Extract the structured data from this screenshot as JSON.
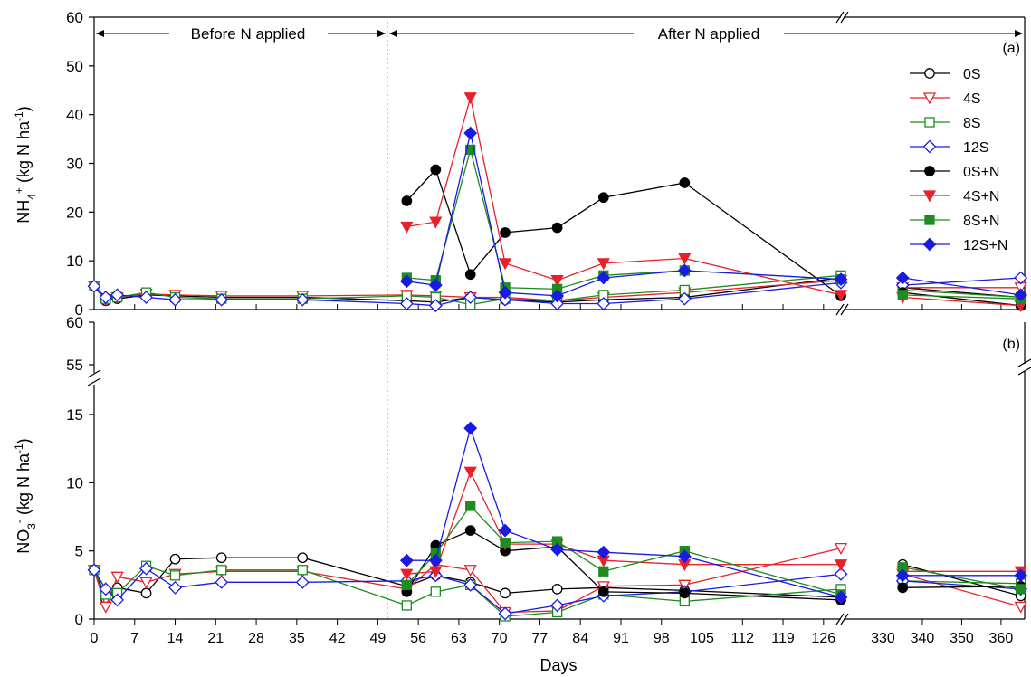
{
  "chart_data": [
    {
      "panel_label": "(a)",
      "type": "line",
      "ylabel": "NH4+ (kg N ha-1)",
      "ylabel_main": "NH",
      "ylabel_sub": "4",
      "ylabel_sup": "+",
      "ylabel_rest": " (kg N ha",
      "ylabel_sup2": "-1",
      "ylabel_close": ")",
      "ylim": [
        0,
        60
      ],
      "yticks": [
        0,
        10,
        20,
        30,
        40,
        50,
        60
      ],
      "xlabel": "",
      "x_axis_break": [
        129,
        320
      ],
      "before_label": "Before N applied",
      "after_label": "After N applied",
      "legend_position": "top-right",
      "series": [
        {
          "name": "0S",
          "color": "#000000",
          "marker": "circle",
          "filled": false,
          "points": [
            [
              0,
              4.8
            ],
            [
              2,
              1.8
            ],
            [
              4,
              2.2
            ],
            [
              9,
              3.0
            ],
            [
              14,
              2.8
            ],
            [
              22,
              2.5
            ],
            [
              36,
              2.5
            ],
            [
              54,
              1.8
            ],
            [
              59,
              1.5
            ],
            [
              65,
              2.5
            ],
            [
              71,
              2.0
            ],
            [
              80,
              1.5
            ],
            [
              88,
              2.0
            ],
            [
              102,
              2.5
            ],
            [
              129,
              6.5
            ],
            [
              335,
              4.5
            ],
            [
              365,
              2.5
            ]
          ]
        },
        {
          "name": "4S",
          "color": "#e8202a",
          "marker": "triangle-down",
          "filled": false,
          "points": [
            [
              0,
              4.8
            ],
            [
              2,
              2.0
            ],
            [
              4,
              2.5
            ],
            [
              9,
              3.2
            ],
            [
              14,
              3.0
            ],
            [
              22,
              2.8
            ],
            [
              36,
              2.8
            ],
            [
              54,
              3.0
            ],
            [
              59,
              2.8
            ],
            [
              65,
              2.5
            ],
            [
              71,
              2.5
            ],
            [
              80,
              1.8
            ],
            [
              88,
              2.5
            ],
            [
              102,
              3.5
            ],
            [
              129,
              6.0
            ],
            [
              335,
              4.5
            ],
            [
              365,
              4.5
            ]
          ]
        },
        {
          "name": "8S",
          "color": "#1e8c1e",
          "marker": "square",
          "filled": false,
          "points": [
            [
              0,
              4.8
            ],
            [
              2,
              2.2
            ],
            [
              4,
              2.5
            ],
            [
              9,
              3.5
            ],
            [
              14,
              2.5
            ],
            [
              22,
              2.2
            ],
            [
              36,
              2.2
            ],
            [
              54,
              2.8
            ],
            [
              59,
              2.5
            ],
            [
              65,
              1.0
            ],
            [
              71,
              2.2
            ],
            [
              80,
              1.8
            ],
            [
              88,
              3.0
            ],
            [
              102,
              4.0
            ],
            [
              129,
              7.0
            ],
            [
              335,
              4.0
            ],
            [
              365,
              2.5
            ]
          ]
        },
        {
          "name": "12S",
          "color": "#1a1ae6",
          "marker": "diamond",
          "filled": false,
          "points": [
            [
              0,
              4.8
            ],
            [
              2,
              2.5
            ],
            [
              4,
              3.0
            ],
            [
              9,
              2.5
            ],
            [
              14,
              2.0
            ],
            [
              22,
              2.0
            ],
            [
              36,
              2.0
            ],
            [
              54,
              1.2
            ],
            [
              59,
              0.8
            ],
            [
              65,
              2.5
            ],
            [
              71,
              2.0
            ],
            [
              80,
              1.2
            ],
            [
              88,
              1.2
            ],
            [
              102,
              2.2
            ],
            [
              129,
              5.5
            ],
            [
              335,
              5.0
            ],
            [
              365,
              6.5
            ]
          ]
        },
        {
          "name": "0S+N",
          "color": "#000000",
          "marker": "circle",
          "filled": true,
          "points": [
            [
              54,
              22.3
            ],
            [
              59,
              28.7
            ],
            [
              65,
              7.2
            ],
            [
              71,
              15.8
            ],
            [
              80,
              16.8
            ],
            [
              88,
              23.0
            ],
            [
              102,
              26.0
            ],
            [
              129,
              2.8
            ],
            [
              335,
              3.5
            ],
            [
              365,
              0.8
            ]
          ]
        },
        {
          "name": "4S+N",
          "color": "#e8202a",
          "marker": "triangle-down",
          "filled": true,
          "points": [
            [
              54,
              17.0
            ],
            [
              59,
              18.0
            ],
            [
              65,
              43.5
            ],
            [
              71,
              9.5
            ],
            [
              80,
              6.0
            ],
            [
              88,
              9.5
            ],
            [
              102,
              10.5
            ],
            [
              129,
              3.0
            ],
            [
              335,
              2.5
            ],
            [
              365,
              0.8
            ]
          ]
        },
        {
          "name": "8S+N",
          "color": "#1e8c1e",
          "marker": "square",
          "filled": true,
          "points": [
            [
              54,
              6.5
            ],
            [
              59,
              6.0
            ],
            [
              65,
              32.8
            ],
            [
              71,
              4.5
            ],
            [
              80,
              4.2
            ],
            [
              88,
              7.0
            ],
            [
              102,
              8.0
            ],
            [
              129,
              6.2
            ],
            [
              335,
              3.0
            ],
            [
              365,
              2.2
            ]
          ]
        },
        {
          "name": "12S+N",
          "color": "#1a1ae6",
          "marker": "diamond",
          "filled": true,
          "points": [
            [
              54,
              5.8
            ],
            [
              59,
              5.0
            ],
            [
              65,
              36.2
            ],
            [
              71,
              3.5
            ],
            [
              80,
              2.8
            ],
            [
              88,
              6.5
            ],
            [
              102,
              8.0
            ],
            [
              129,
              6.2
            ],
            [
              335,
              6.5
            ],
            [
              365,
              3.0
            ]
          ]
        }
      ]
    },
    {
      "panel_label": "(b)",
      "type": "line",
      "ylabel": "NO3- (kg N ha-1)",
      "ylabel_main": "NO",
      "ylabel_sub": "3",
      "ylabel_sup": "-",
      "ylabel_rest": " (kg N ha",
      "ylabel_sup2": "-1",
      "ylabel_close": ")",
      "ylim": [
        0,
        60
      ],
      "y_axis_break": [
        17,
        52
      ],
      "yticks": [
        0,
        5,
        10,
        15,
        55,
        60
      ],
      "xlabel": "Days",
      "x_axis_break": [
        129,
        320
      ],
      "xticks_left": [
        0,
        7,
        14,
        21,
        28,
        35,
        42,
        49,
        56,
        63,
        70,
        77,
        84,
        91,
        98,
        105,
        112,
        119,
        126
      ],
      "xticks_right": [
        330,
        340,
        350,
        360
      ],
      "series": [
        {
          "name": "0S",
          "color": "#000000",
          "marker": "circle",
          "filled": false,
          "points": [
            [
              0,
              3.6
            ],
            [
              2,
              1.5
            ],
            [
              4,
              2.3
            ],
            [
              9,
              1.9
            ],
            [
              14,
              4.4
            ],
            [
              22,
              4.5
            ],
            [
              36,
              4.5
            ],
            [
              54,
              2.4
            ],
            [
              59,
              3.2
            ],
            [
              65,
              2.7
            ],
            [
              71,
              1.9
            ],
            [
              80,
              2.2
            ],
            [
              88,
              2.3
            ],
            [
              102,
              2.1
            ],
            [
              129,
              1.6
            ],
            [
              335,
              4.0
            ],
            [
              365,
              1.7
            ]
          ]
        },
        {
          "name": "4S",
          "color": "#e8202a",
          "marker": "triangle-down",
          "filled": false,
          "points": [
            [
              0,
              3.6
            ],
            [
              2,
              0.9
            ],
            [
              4,
              3.1
            ],
            [
              9,
              2.7
            ],
            [
              14,
              3.3
            ],
            [
              22,
              3.5
            ],
            [
              36,
              3.5
            ],
            [
              54,
              2.2
            ],
            [
              59,
              4.0
            ],
            [
              65,
              3.6
            ],
            [
              71,
              0.5
            ],
            [
              80,
              0.6
            ],
            [
              88,
              2.4
            ],
            [
              102,
              2.5
            ],
            [
              129,
              5.2
            ],
            [
              335,
              3.3
            ],
            [
              365,
              0.9
            ]
          ]
        },
        {
          "name": "8S",
          "color": "#1e8c1e",
          "marker": "square",
          "filled": false,
          "points": [
            [
              0,
              3.6
            ],
            [
              2,
              1.8
            ],
            [
              4,
              1.9
            ],
            [
              9,
              3.9
            ],
            [
              14,
              3.2
            ],
            [
              22,
              3.6
            ],
            [
              36,
              3.6
            ],
            [
              54,
              1.0
            ],
            [
              59,
              2.0
            ],
            [
              65,
              2.5
            ],
            [
              71,
              0.2
            ],
            [
              80,
              0.5
            ],
            [
              88,
              1.8
            ],
            [
              102,
              1.3
            ],
            [
              129,
              2.2
            ],
            [
              335,
              2.8
            ],
            [
              365,
              2.6
            ]
          ]
        },
        {
          "name": "12S",
          "color": "#1a1ae6",
          "marker": "diamond",
          "filled": false,
          "points": [
            [
              0,
              3.6
            ],
            [
              2,
              2.2
            ],
            [
              4,
              1.4
            ],
            [
              9,
              3.7
            ],
            [
              14,
              2.3
            ],
            [
              22,
              2.7
            ],
            [
              36,
              2.7
            ],
            [
              54,
              2.8
            ],
            [
              59,
              3.2
            ],
            [
              65,
              2.5
            ],
            [
              71,
              0.4
            ],
            [
              80,
              1.0
            ],
            [
              88,
              1.7
            ],
            [
              102,
              2.0
            ],
            [
              129,
              3.3
            ],
            [
              335,
              2.8
            ],
            [
              365,
              2.2
            ]
          ]
        },
        {
          "name": "0S+N",
          "color": "#000000",
          "marker": "circle",
          "filled": true,
          "points": [
            [
              54,
              2.0
            ],
            [
              59,
              5.4
            ],
            [
              65,
              6.5
            ],
            [
              71,
              5.0
            ],
            [
              80,
              5.3
            ],
            [
              88,
              2.0
            ],
            [
              102,
              1.9
            ],
            [
              129,
              1.4
            ],
            [
              335,
              2.3
            ],
            [
              365,
              2.4
            ]
          ]
        },
        {
          "name": "4S+N",
          "color": "#e8202a",
          "marker": "triangle-down",
          "filled": true,
          "points": [
            [
              54,
              3.3
            ],
            [
              59,
              3.5
            ],
            [
              65,
              10.8
            ],
            [
              71,
              5.5
            ],
            [
              80,
              5.5
            ],
            [
              88,
              4.3
            ],
            [
              102,
              4.0
            ],
            [
              129,
              4.0
            ],
            [
              335,
              3.5
            ],
            [
              365,
              3.5
            ]
          ]
        },
        {
          "name": "8S+N",
          "color": "#1e8c1e",
          "marker": "square",
          "filled": true,
          "points": [
            [
              54,
              2.5
            ],
            [
              59,
              4.8
            ],
            [
              65,
              8.3
            ],
            [
              71,
              5.6
            ],
            [
              80,
              5.7
            ],
            [
              88,
              3.5
            ],
            [
              102,
              5.0
            ],
            [
              129,
              1.8
            ],
            [
              335,
              3.8
            ],
            [
              365,
              2.2
            ]
          ]
        },
        {
          "name": "12S+N",
          "color": "#1a1ae6",
          "marker": "diamond",
          "filled": true,
          "points": [
            [
              54,
              4.3
            ],
            [
              59,
              4.3
            ],
            [
              65,
              14.0
            ],
            [
              71,
              6.5
            ],
            [
              80,
              5.1
            ],
            [
              88,
              4.9
            ],
            [
              102,
              4.6
            ],
            [
              129,
              1.6
            ],
            [
              335,
              3.2
            ],
            [
              365,
              3.2
            ]
          ]
        }
      ]
    }
  ]
}
